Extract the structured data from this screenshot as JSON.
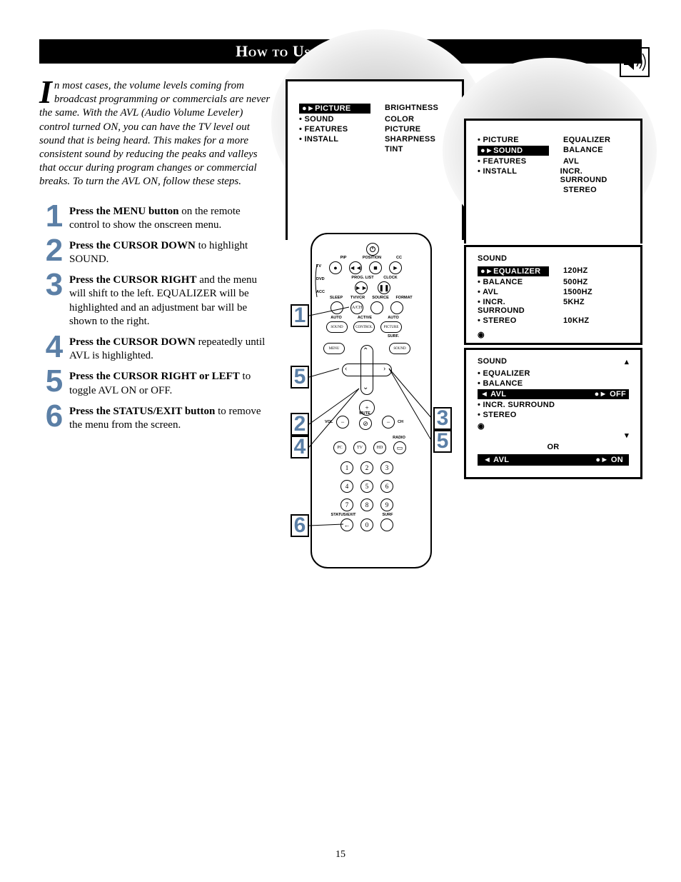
{
  "title": "How to Use the AVL Control",
  "page_number": "15",
  "intro": {
    "dropcap": "I",
    "text": "n most cases, the volume levels coming from broadcast programming or commercials are never the same.  With the AVL (Audio Volume Leveler) control turned ON, you can have the TV level out sound that is being heard.  This makes for a more consistent sound by reducing the peaks and valleys that occur during program changes or commercial breaks.  To turn the AVL ON, follow these steps."
  },
  "steps": [
    {
      "n": "1",
      "bold": "Press the MENU button",
      "rest": " on the remote control to show the onscreen menu."
    },
    {
      "n": "2",
      "bold": "Press the CURSOR DOWN",
      "rest": " to highlight SOUND."
    },
    {
      "n": "3",
      "bold": "Press the CURSOR RIGHT",
      "rest": " and the menu will shift to the left. EQUALIZER will be highlighted and an adjustment bar will be shown to the right."
    },
    {
      "n": "4",
      "bold": "Press the CURSOR DOWN",
      "rest": " repeatedly until AVL is highlighted."
    },
    {
      "n": "5",
      "bold": "Press the CURSOR RIGHT or LEFT",
      "rest": " to toggle AVL ON or OFF."
    },
    {
      "n": "6",
      "bold": "Press the STATUS/EXIT button",
      "rest": " to remove the menu from the screen."
    }
  ],
  "menu1": {
    "left": [
      {
        "t": "PICTURE",
        "sel": true
      },
      {
        "t": "SOUND"
      },
      {
        "t": "FEATURES"
      },
      {
        "t": "INSTALL"
      }
    ],
    "right": [
      "BRIGHTNESS",
      "COLOR",
      "PICTURE",
      "SHARPNESS",
      "TINT"
    ]
  },
  "menu2": {
    "left": [
      {
        "t": "PICTURE"
      },
      {
        "t": "SOUND",
        "sel": true
      },
      {
        "t": "FEATURES"
      },
      {
        "t": "INSTALL"
      }
    ],
    "right": [
      "EQUALIZER",
      "BALANCE",
      "AVL",
      "INCR. SURROUND",
      "STEREO"
    ]
  },
  "menu3": {
    "title": "SOUND",
    "left": [
      {
        "t": "EQUALIZER",
        "sel": true
      },
      {
        "t": "BALANCE"
      },
      {
        "t": "AVL"
      },
      {
        "t": "INCR. SURROUND"
      },
      {
        "t": "STEREO"
      }
    ],
    "right": [
      "120HZ",
      "500HZ",
      "1500HZ",
      "5KHZ",
      "10KHZ"
    ],
    "slider": true
  },
  "menu4": {
    "title": "SOUND",
    "items": [
      "EQUALIZER",
      "BALANCE",
      "AVL",
      "INCR. SURROUND",
      "STEREO"
    ],
    "avl_off": {
      "label": "AVL",
      "value": "OFF"
    },
    "avl_on": {
      "label": "AVL",
      "value": "ON"
    },
    "or": "OR"
  },
  "remote_labels": {
    "top": [
      "PIP",
      "POSITION",
      "CC"
    ],
    "sides": [
      "TV",
      "DVD",
      "ACC"
    ],
    "row2": [
      "PROG. LIST",
      "CLOCK"
    ],
    "row3": [
      "SLEEP",
      "TV/VCR",
      "SOURCE",
      "FORMAT"
    ],
    "row4": [
      "AUTO",
      "ACTIVE",
      "AUTO"
    ],
    "ovals": [
      "SOUND",
      "CONTROL",
      "PICTURE"
    ],
    "surf": "SURF.",
    "menu": "MENU",
    "sound": "SOUND",
    "vol": "VOL",
    "mute": "MUTE",
    "ch": "CH",
    "bottom": [
      "PC",
      "TV",
      "HD"
    ],
    "radio": "RADIO",
    "statusexit": "STATUS/EXIT",
    "surf2": "SURF",
    "plus": "A/CH"
  },
  "callouts": [
    "1",
    "5",
    "2",
    "4",
    "6",
    "3",
    "5"
  ],
  "colors": {
    "accent": "#5b7fa6"
  }
}
